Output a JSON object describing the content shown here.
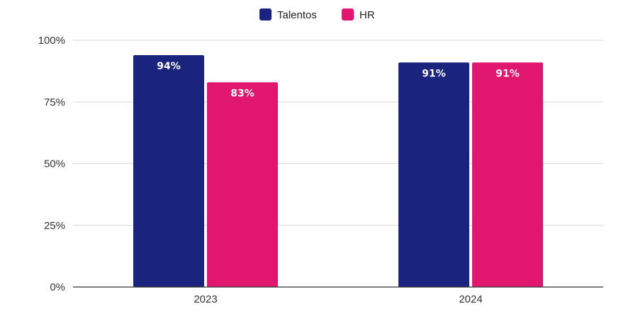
{
  "chart_data": {
    "type": "bar",
    "categories": [
      "2023",
      "2024"
    ],
    "series": [
      {
        "name": "Talentos",
        "values": [
          94,
          91
        ],
        "labels": [
          "94%",
          "91%"
        ],
        "color": "#1a237e"
      },
      {
        "name": "HR",
        "values": [
          83,
          91
        ],
        "labels": [
          "83%",
          "91%"
        ],
        "color": "#e0166f"
      }
    ],
    "ylim": [
      0,
      100
    ],
    "yticks": [
      0,
      25,
      50,
      75,
      100
    ],
    "ytick_labels": [
      "0%",
      "25%",
      "50%",
      "75%",
      "100%"
    ],
    "grid": true,
    "legend_position": "top-center",
    "title": "",
    "xlabel": "",
    "ylabel": ""
  }
}
